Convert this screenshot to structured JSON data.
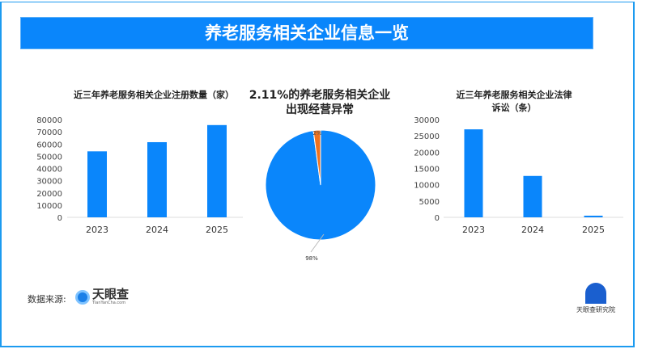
{
  "banner_title": "养老服务相关企业信息一览",
  "source_label": "数据来源:",
  "source_logo": {
    "name": "天眼查",
    "sub": "TianYanCha.com"
  },
  "institute_logo": "天眼查研究院",
  "colors": {
    "bar": "#0a86fb",
    "pie_main": "#0a86fb",
    "pie_minor": "#f0721f",
    "banner": "#0a86fb"
  },
  "chart_data": [
    {
      "type": "bar",
      "title": "近三年养老服务相关企业注册数量（家）",
      "categories": [
        "2023",
        "2024",
        "2025"
      ],
      "values": [
        54000,
        61500,
        75500
      ],
      "ylim": [
        0,
        80000
      ],
      "yticks": [
        "0",
        "10000",
        "20000",
        "30000",
        "40000",
        "50000",
        "60000",
        "70000",
        "80000"
      ],
      "grid": false
    },
    {
      "type": "pie",
      "title": "2.11%的养老服务相关企业出现经营异常",
      "slices": [
        {
          "value": 2.11,
          "label": "2%"
        },
        {
          "value": 97.89,
          "label": "98%"
        }
      ]
    },
    {
      "type": "bar",
      "title": "近三年养老服务相关企业法律诉讼（条）",
      "categories": [
        "2023",
        "2024",
        "2025"
      ],
      "values": [
        27000,
        12700,
        500
      ],
      "ylim": [
        0,
        30000
      ],
      "yticks": [
        "0",
        "5000",
        "10000",
        "15000",
        "20000",
        "25000",
        "30000"
      ],
      "grid": false
    }
  ]
}
